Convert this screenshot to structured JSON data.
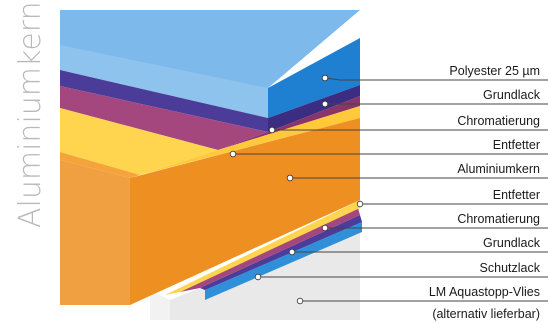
{
  "title": "Aluminiumkern",
  "labels": [
    {
      "text": "Polyester 25 µm"
    },
    {
      "text": "Grundlack"
    },
    {
      "text": "Chromatierung"
    },
    {
      "text": "Entfetter"
    },
    {
      "text": "Aluminiumkern"
    },
    {
      "text": "Entfetter"
    },
    {
      "text": "Chromatierung"
    },
    {
      "text": "Grundlack"
    },
    {
      "text": "Schutzlack"
    },
    {
      "text": "LM Aquastopp-Vlies"
    },
    {
      "text": "(alternativ lieferbar)"
    }
  ],
  "colors": {
    "polyester": "#5aa9e6",
    "grundlack": "#4b3c9a",
    "chromatierung": "#a4477f",
    "entfetter": "#ffd54f",
    "aluminiumkern": "#f3952a",
    "schutzlack": "#2f8fd8",
    "vlies": "#e6e6e6",
    "leader": "#444444"
  }
}
